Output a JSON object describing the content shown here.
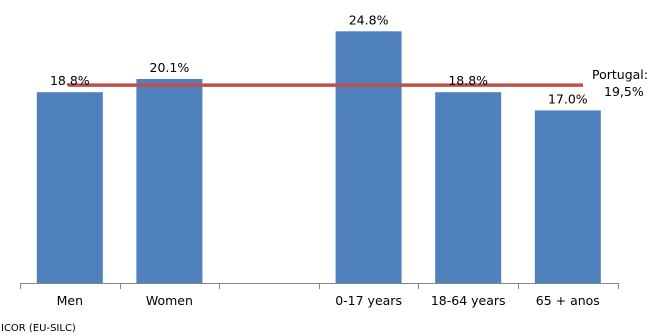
{
  "chart_data": {
    "type": "bar",
    "categories": [
      "Men",
      "Women",
      "",
      "0-17  years",
      "18-64 years",
      "65 + anos"
    ],
    "values": [
      18.8,
      20.1,
      null,
      24.8,
      18.8,
      17.0
    ],
    "data_labels": [
      "18.8%",
      "20.1%",
      "",
      "24.8%",
      "18.8%",
      "17.0%"
    ],
    "reference_line": {
      "value": 19.5,
      "label_line1": "Portugal:",
      "label_line2": "19,5%",
      "color": "#C0504D"
    },
    "bar_color": "#4F81BD",
    "ylim": [
      0,
      26.5
    ],
    "grid": false,
    "source": "ICOR (EU-SILC)"
  }
}
